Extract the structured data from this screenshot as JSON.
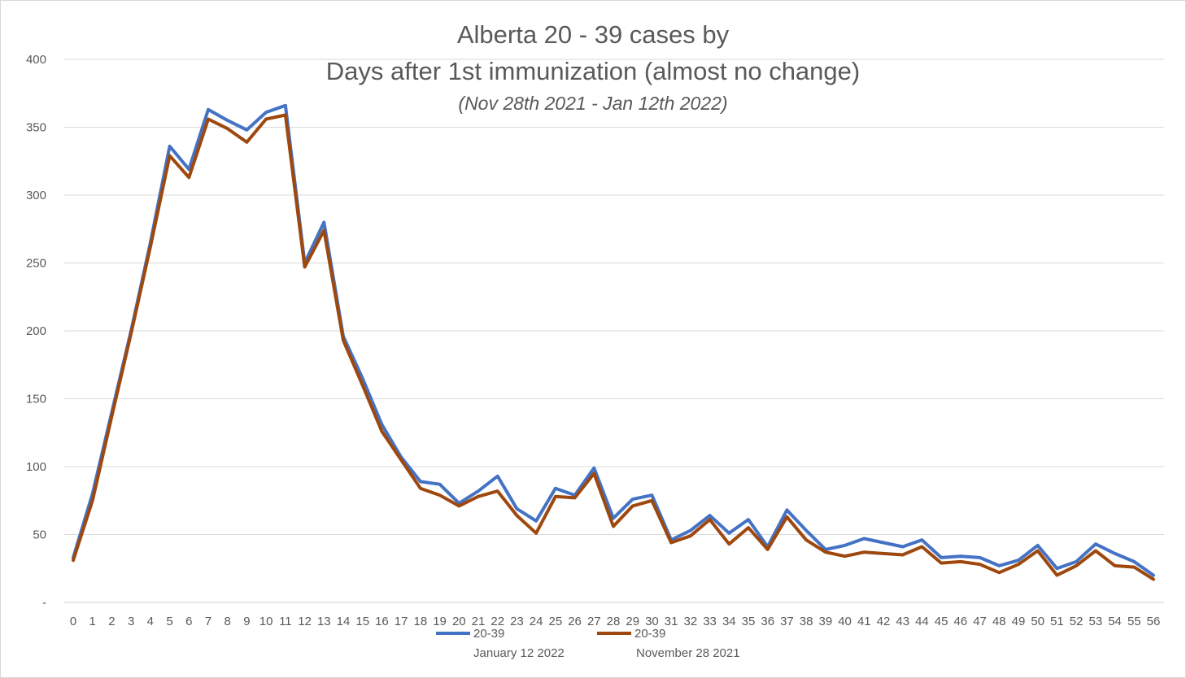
{
  "chart_data": {
    "type": "line",
    "title": "Alberta 20 - 39 cases by",
    "title_line2": "Days after 1st immunization (almost no change)",
    "subtitle": "(Nov 28th 2021 - Jan 12th 2022)",
    "xlabel": "",
    "ylabel": "",
    "ylim": [
      0,
      400
    ],
    "y_ticks": [
      "-",
      "50",
      "100",
      "150",
      "200",
      "250",
      "300",
      "350",
      "400"
    ],
    "grid": true,
    "legend_position": "bottom",
    "categories": [
      "0",
      "1",
      "2",
      "3",
      "4",
      "5",
      "6",
      "7",
      "8",
      "9",
      "10",
      "11",
      "12",
      "13",
      "14",
      "15",
      "16",
      "17",
      "18",
      "19",
      "20",
      "21",
      "22",
      "23",
      "24",
      "25",
      "26",
      "27",
      "28",
      "29",
      "30",
      "31",
      "32",
      "33",
      "34",
      "35",
      "36",
      "37",
      "38",
      "39",
      "40",
      "41",
      "42",
      "43",
      "44",
      "45",
      "46",
      "47",
      "48",
      "49",
      "50",
      "51",
      "52",
      "53",
      "54",
      "55",
      "56"
    ],
    "series": [
      {
        "name": "20-39",
        "sublabel": "January 12 2022",
        "color": "#4472C4",
        "values": [
          33,
          80,
          140,
          200,
          265,
          336,
          319,
          363,
          355,
          348,
          361,
          366,
          250,
          280,
          196,
          165,
          131,
          107,
          89,
          87,
          73,
          82,
          93,
          69,
          60,
          84,
          79,
          99,
          62,
          76,
          79,
          46,
          53,
          64,
          51,
          61,
          41,
          68,
          53,
          39,
          42,
          47,
          44,
          41,
          46,
          33,
          34,
          33,
          27,
          31,
          42,
          25,
          30,
          43,
          36,
          30,
          20
        ]
      },
      {
        "name": "20-39",
        "sublabel": "November 28 2021",
        "color": "#9E480E",
        "values": [
          31,
          75,
          137,
          198,
          262,
          329,
          313,
          356,
          349,
          339,
          356,
          359,
          247,
          274,
          193,
          160,
          126,
          105,
          84,
          79,
          71,
          78,
          82,
          64,
          51,
          78,
          77,
          95,
          56,
          71,
          75,
          44,
          49,
          61,
          43,
          55,
          39,
          63,
          46,
          37,
          34,
          37,
          36,
          35,
          41,
          29,
          30,
          28,
          22,
          28,
          38,
          20,
          27,
          38,
          27,
          26,
          17
        ]
      }
    ]
  }
}
